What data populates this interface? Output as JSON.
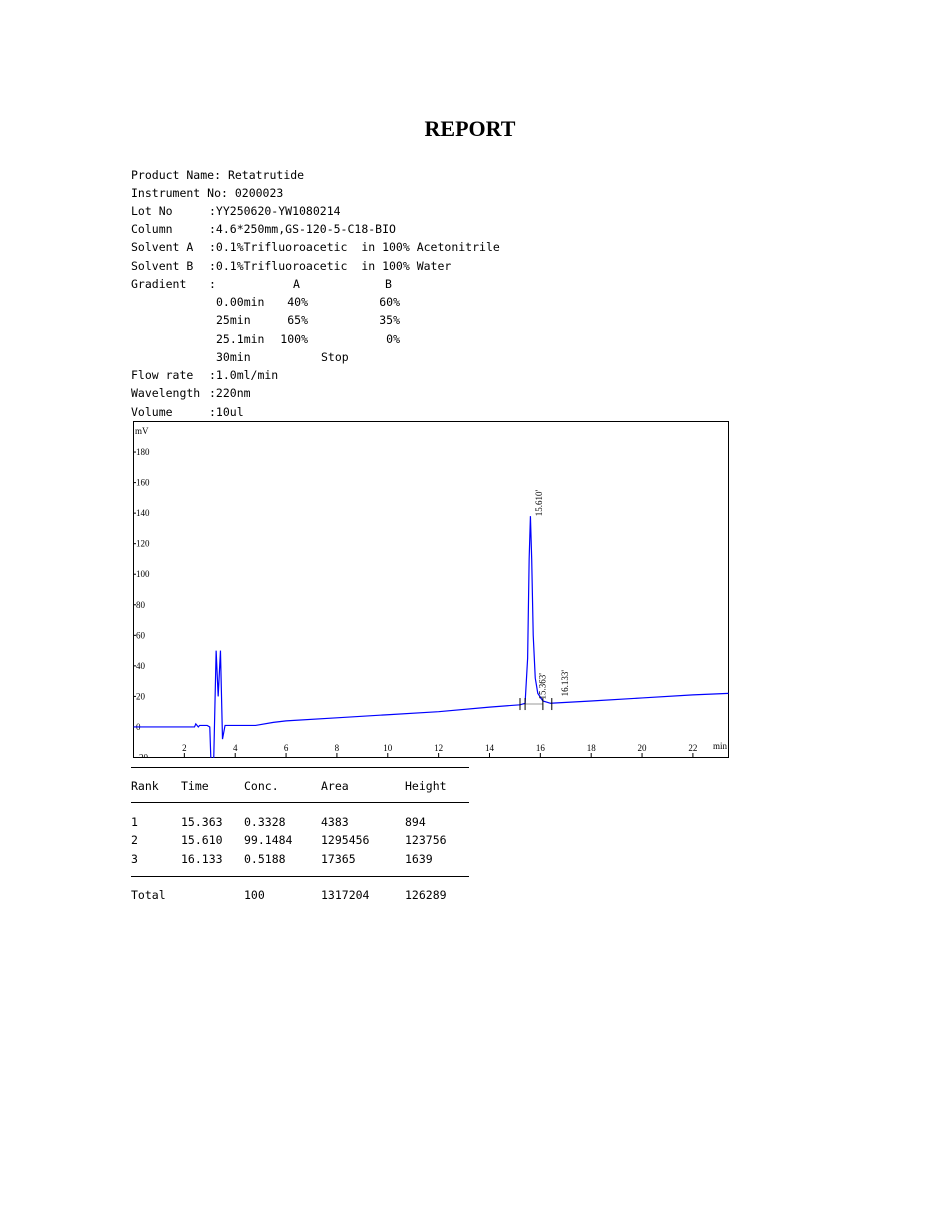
{
  "title": "REPORT",
  "info": [
    {
      "label": "Product Name:",
      "value": " Retatrutide",
      "inline": true
    },
    {
      "label": "Instrument No:",
      "value": " 0200023",
      "inline": true
    },
    {
      "label": "Lot No",
      "value": ":YY250620-YW1080214"
    },
    {
      "label": "Column",
      "value": ":4.6*250mm,GS-120-5-C18-BIO"
    },
    {
      "label": "Solvent A",
      "value": ":0.1%Trifluoroacetic  in 100% Acetonitrile"
    },
    {
      "label": "Solvent B",
      "value": ":0.1%Trifluoroacetic  in 100% Water"
    },
    {
      "label": "Gradient",
      "value": ":"
    }
  ],
  "gradient": {
    "header": {
      "a": "A",
      "b": "B"
    },
    "rows": [
      {
        "time": "0.00min",
        "a": "40%",
        "b": "60%"
      },
      {
        "time": "25min",
        "a": "65%",
        "b": "35%"
      },
      {
        "time": "25.1min",
        "a": "100%",
        "b": "0%"
      },
      {
        "time": "30min",
        "stop": "Stop"
      }
    ]
  },
  "info2": [
    {
      "label": "Flow rate",
      "value": ":1.0ml/min"
    },
    {
      "label": "Wavelength",
      "value": ":220nm"
    },
    {
      "label": "Volume",
      "value": ":10ul"
    }
  ],
  "chart_data": {
    "type": "line",
    "ylabel": "mV",
    "xlabel": "min",
    "xlim": [
      0,
      23.4
    ],
    "ylim": [
      -20,
      200
    ],
    "xticks": [
      2,
      4,
      6,
      8,
      10,
      12,
      14,
      16,
      18,
      20,
      22
    ],
    "yticks": [
      -20,
      0,
      20,
      40,
      60,
      80,
      100,
      120,
      140,
      160,
      180
    ],
    "line_color": "#0000ff",
    "series": [
      {
        "x": [
          0,
          2.4,
          2.45,
          2.55,
          2.6,
          2.9,
          3.0,
          3.05,
          3.15,
          3.25,
          3.33,
          3.42,
          3.5,
          3.6,
          4.8,
          5.5,
          6,
          8,
          10,
          12,
          14,
          15.2,
          15.4,
          15.5,
          15.56,
          15.61,
          15.66,
          15.72,
          15.8,
          15.9,
          16.1,
          16.4,
          18,
          20,
          22,
          23.4
        ],
        "y": [
          0,
          0,
          2,
          0,
          1,
          1,
          0,
          -25,
          -25,
          50,
          20,
          50,
          -8,
          1,
          1,
          3,
          4,
          6,
          8,
          10,
          13,
          14.5,
          15.5,
          45,
          110,
          138,
          110,
          60,
          32,
          22,
          17,
          15.5,
          17,
          19,
          21,
          22
        ]
      }
    ],
    "peak_labels": [
      {
        "x": 15.61,
        "text": "15.610'"
      },
      {
        "x": 15.363,
        "text": "15.363'"
      },
      {
        "x": 16.133,
        "text": "16.133'"
      }
    ],
    "baseline_marks": [
      15.2,
      15.4,
      16.1,
      16.45
    ]
  },
  "results": {
    "headers": [
      "Rank",
      "Time",
      "Conc.",
      "Area",
      "Height"
    ],
    "rows": [
      [
        "1",
        "15.363",
        "0.3328",
        "4383",
        "894"
      ],
      [
        "2",
        "15.610",
        "99.1484",
        "1295456",
        "123756"
      ],
      [
        "3",
        "16.133",
        "0.5188",
        "17365",
        "1639"
      ]
    ],
    "total": [
      "Total",
      "",
      "100",
      "1317204",
      "126289"
    ]
  }
}
